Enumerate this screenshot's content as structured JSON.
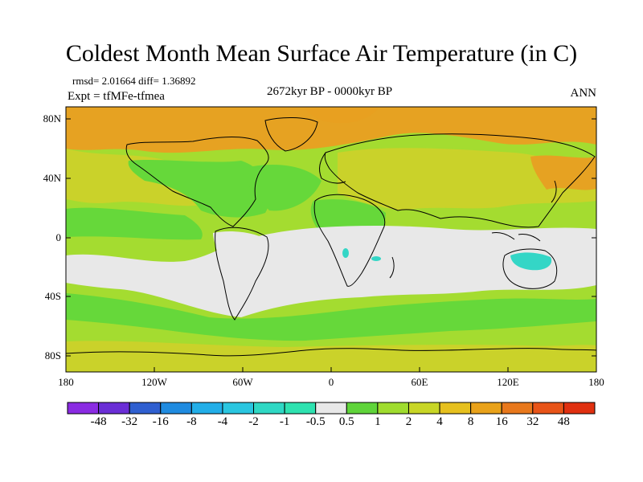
{
  "title": "Coldest Month Mean Surface Air Temperature (in C)",
  "stats": "rmsd= 2.01664  diff= 1.36892",
  "expt": "Expt = tfMFe-tfmea",
  "period": "2672kyr BP - 0000kyr BP",
  "season": "ANN",
  "lat_labels": [
    "80N",
    "40N",
    "0",
    "40S",
    "80S"
  ],
  "lon_labels": [
    "180",
    "120W",
    "60W",
    "0",
    "60E",
    "120E",
    "180"
  ],
  "colorbar": {
    "labels": [
      "-48",
      "-32",
      "-16",
      "-8",
      "-4",
      "-2",
      "-1",
      "-0.5",
      "0.5",
      "1",
      "2",
      "4",
      "8",
      "16",
      "32",
      "48"
    ],
    "colors": [
      "#8a2be2",
      "#6a2ed6",
      "#2f5fd0",
      "#1f8be0",
      "#22aee8",
      "#2ac6e0",
      "#2fd8c4",
      "#2ee2b0",
      "#e8e8e8",
      "#5fd43a",
      "#9fdc2e",
      "#c8d626",
      "#e6c01e",
      "#e9a21a",
      "#e8781c",
      "#e85418",
      "#e03010"
    ]
  },
  "colors": {
    "neutral": "#e8e8e8",
    "green": "#66d83a",
    "lightgreen": "#a4dc30",
    "yellow": "#cad22a",
    "orange": "#e6a222",
    "cyan": "#34d6c6"
  }
}
